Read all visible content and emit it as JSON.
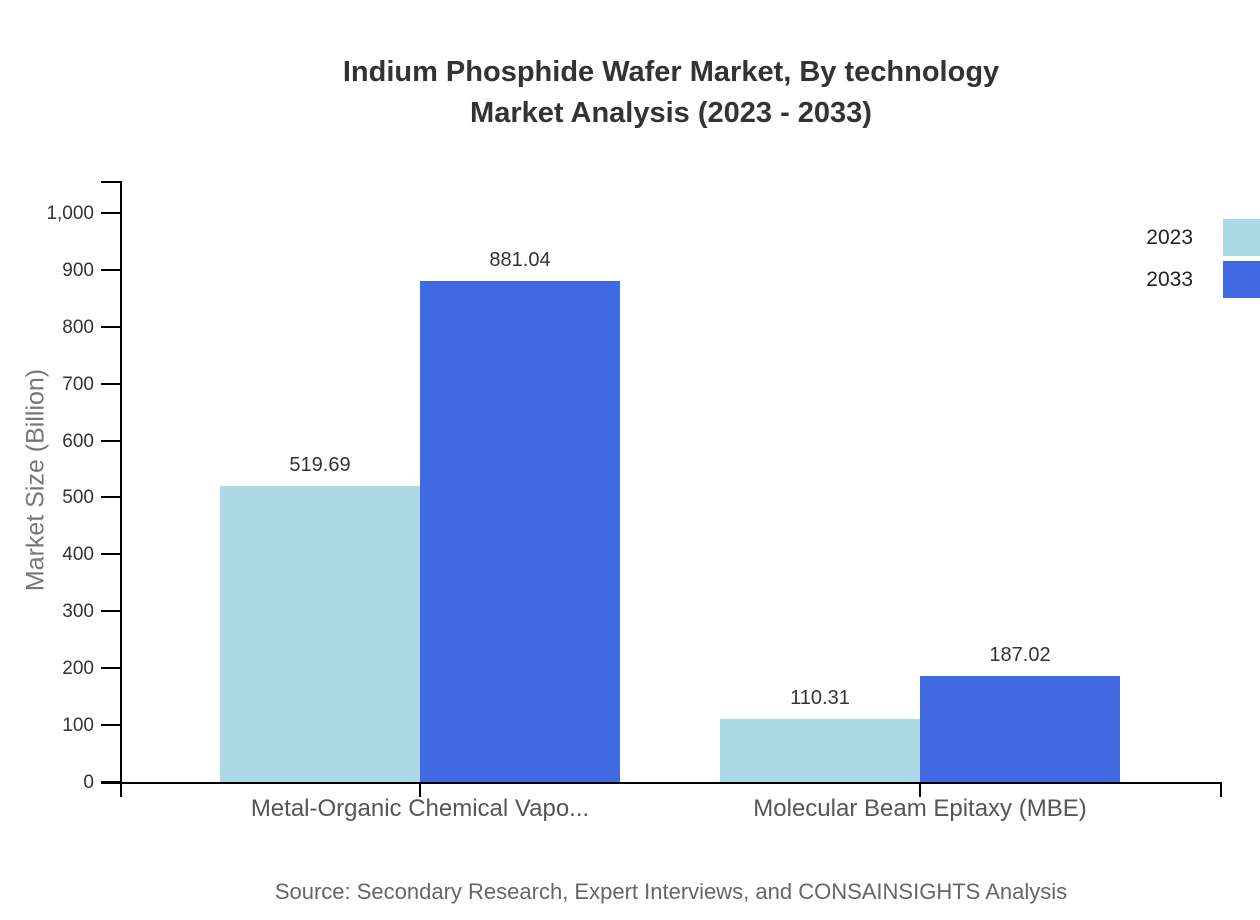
{
  "title": {
    "line1": "Indium Phosphide Wafer Market, By technology",
    "line2": "Market Analysis (2023 - 2033)"
  },
  "chart_data": {
    "type": "bar",
    "title": "Indium Phosphide Wafer Market, By technology Market Analysis (2023 - 2033)",
    "categories": [
      "Metal-Organic Chemical Vapo...",
      "Molecular Beam Epitaxy (MBE)"
    ],
    "series": [
      {
        "name": "2023",
        "color": "#ADD8E6",
        "values": [
          519.69,
          110.31
        ]
      },
      {
        "name": "2033",
        "color": "#4169E1",
        "values": [
          881.04,
          187.02
        ]
      }
    ],
    "xlabel": "",
    "ylabel": "Market Size (Billion)",
    "ylim": [
      0,
      1056
    ],
    "yticks": [
      0,
      100,
      200,
      300,
      400,
      500,
      600,
      700,
      800,
      900,
      1000
    ],
    "ytick_labels": [
      "0",
      "100",
      "200",
      "300",
      "400",
      "500",
      "600",
      "700",
      "800",
      "900",
      "1,000"
    ],
    "grid": false,
    "legend_position": "top-right",
    "value_labels": true
  },
  "colors": {
    "axis": "#000000",
    "title_text": "#333333",
    "tick_text": "#333333",
    "category_text": "#555555",
    "ylabel_text": "#777777",
    "source_text": "#666666",
    "background": "#ffffff"
  },
  "source": "Source: Secondary Research, Expert Interviews, and CONSAINSIGHTS Analysis"
}
